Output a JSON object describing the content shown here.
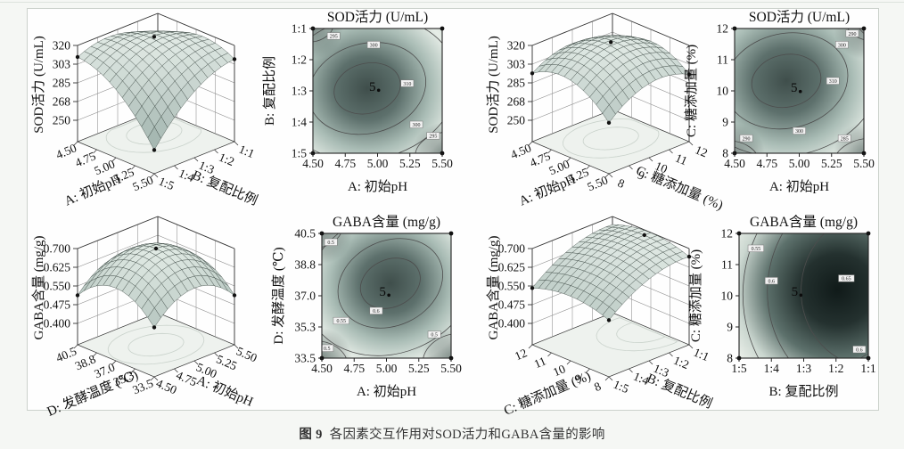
{
  "page": {
    "caption_label": "图 9",
    "caption_text": "各因素交互作用对SOD活力和GABA含量的影响"
  },
  "colors": {
    "page_bg": "#f5f7f4",
    "panel_bg": "#fefefe",
    "panel_border": "#cbd1cb",
    "axis_color": "#111111",
    "wall_grid": "#8a8a8a",
    "frame": "#333333",
    "floor_fill": "#eef2ee",
    "floor_ring": "#c9d2cb",
    "surface_low": "#8ba19b",
    "surface_high": "#e0e9e4",
    "surface_stroke": "#37443f",
    "ring_stroke": "#4d4d4d",
    "contour_palette": [
      "#3f4e4b",
      "#5d706c",
      "#a9bcb5",
      "#e6ede7",
      "#cfdad2"
    ],
    "contour_palette_dark": [
      "#101a19",
      "#24312f",
      "#5d716c",
      "#cbd7d0",
      "#eef2ec"
    ],
    "label_box_fill": "#f2f2f2",
    "label_box_stroke": "#777777"
  },
  "chart_data": [
    {
      "id": "sod-3d-ph-ratio",
      "type": "surface3d",
      "zlabel": "SOD活力 (U/mL)",
      "zlim": [
        250,
        320
      ],
      "zticks": [
        "320",
        "303",
        "285",
        "268",
        "250"
      ],
      "xlabel": "A: 初始pH",
      "xticks": [
        "4.50",
        "4.75",
        "5.00",
        "5.25",
        "5.50"
      ],
      "ylabel": "B: 复配比例",
      "yticks": [
        "1:5",
        "1:4",
        "1:3",
        "1:2",
        "1:1"
      ],
      "surface": {
        "u0": 0.35,
        "v0": 0.62,
        "ka": 0.75,
        "kb": 0.7,
        "kint": -0.95
      },
      "dots": [
        [
          0,
          0
        ],
        [
          1,
          0
        ],
        [
          1,
          1
        ],
        "peak"
      ]
    },
    {
      "id": "sod-contour-ph-ratio",
      "type": "contour",
      "title": "SOD活力 (U/mL)",
      "xlabel": "A: 初始pH",
      "xticks": [
        "4.50",
        "4.75",
        "5.00",
        "5.25",
        "5.50"
      ],
      "ylabel": "B: 复配比例",
      "yticks": [
        "1:1",
        "1:2",
        "1:3",
        "1:4",
        "1:5"
      ],
      "center": {
        "label": "5",
        "x": 46,
        "y": 47
      },
      "grad": {
        "cx": 42,
        "cy": 48,
        "r": 85,
        "dark2": false
      },
      "dark_corners": [
        "tl",
        "br"
      ],
      "rings": [
        {
          "cx": 42,
          "cy": 48,
          "rx": 26,
          "ry": 20,
          "rot": -15
        },
        {
          "cx": 42,
          "cy": 48,
          "rx": 46,
          "ry": 36,
          "rot": -15
        },
        {
          "cx": 42,
          "cy": 48,
          "rx": 70,
          "ry": 57,
          "rot": -12
        },
        {
          "cx": -4,
          "cy": -4,
          "rx": 20,
          "ry": 15,
          "rot": 0
        },
        {
          "cx": 105,
          "cy": 103,
          "rx": 26,
          "ry": 20,
          "rot": 0
        }
      ],
      "ring_labels": [
        {
          "text": "295",
          "x": 16,
          "y": 6
        },
        {
          "text": "300",
          "x": 47,
          "y": 13
        },
        {
          "text": "310",
          "x": 73,
          "y": 44
        },
        {
          "text": "300",
          "x": 80,
          "y": 77
        },
        {
          "text": "295",
          "x": 93,
          "y": 86
        }
      ]
    },
    {
      "id": "sod-3d-ph-sugar",
      "type": "surface3d",
      "zlabel": "SOD活力 (U/mL)",
      "zlim": [
        250,
        320
      ],
      "zticks": [
        "320",
        "303",
        "285",
        "268",
        "250"
      ],
      "xlabel": "A: 初始pH",
      "xticks": [
        "4.50",
        "4.75",
        "5.00",
        "5.25",
        "5.50"
      ],
      "ylabel": "C: 糖添加量 (%)",
      "yticks": [
        "8",
        "9",
        "10",
        "11",
        "12"
      ],
      "surface": {
        "u0": 0.45,
        "v0": 0.55,
        "ka": 0.95,
        "kb": 0.8,
        "kint": -0.25
      },
      "dots": [
        [
          0,
          0
        ],
        [
          1,
          0
        ],
        [
          1,
          1
        ],
        "peak"
      ]
    },
    {
      "id": "sod-contour-ph-sugar",
      "type": "contour",
      "title": "SOD活力 (U/mL)",
      "xlabel": "A: 初始pH",
      "xticks": [
        "4.50",
        "4.75",
        "5.00",
        "5.25",
        "5.50"
      ],
      "ylabel": "C: 糖添加量 (%)",
      "yticks": [
        "12",
        "11",
        "10",
        "9",
        "8"
      ],
      "center": {
        "label": "5",
        "x": 46,
        "y": 48
      },
      "grad": {
        "cx": 40,
        "cy": 42,
        "r": 88,
        "dark2": false
      },
      "dark_corners": [
        "tr",
        "bl",
        "br"
      ],
      "rings": [
        {
          "cx": 40,
          "cy": 42,
          "rx": 27,
          "ry": 21,
          "rot": -12
        },
        {
          "cx": 40,
          "cy": 42,
          "rx": 48,
          "ry": 38,
          "rot": -12
        },
        {
          "cx": 40,
          "cy": 42,
          "rx": 73,
          "ry": 60,
          "rot": -10
        },
        {
          "cx": -5,
          "cy": 108,
          "rx": 24,
          "ry": 18,
          "rot": 0
        },
        {
          "cx": 106,
          "cy": 110,
          "rx": 30,
          "ry": 22,
          "rot": 0
        },
        {
          "cx": 108,
          "cy": -6,
          "rx": 22,
          "ry": 16,
          "rot": 0
        }
      ],
      "ring_labels": [
        {
          "text": "290",
          "x": 91,
          "y": 4
        },
        {
          "text": "300",
          "x": 83,
          "y": 13
        },
        {
          "text": "310",
          "x": 76,
          "y": 42
        },
        {
          "text": "300",
          "x": 50,
          "y": 82
        },
        {
          "text": "290",
          "x": 9,
          "y": 88
        },
        {
          "text": "285",
          "x": 85,
          "y": 88
        }
      ]
    },
    {
      "id": "gaba-3d-temp-ph",
      "type": "surface3d",
      "zlabel": "GABA含量 (mg/g)",
      "zlim": [
        0.4,
        0.7
      ],
      "zticks": [
        "0.700",
        "0.625",
        "0.550",
        "0.475",
        "0.400"
      ],
      "xlabel": "D: 发酵温度 (℃)",
      "xticks": [
        "40.5",
        "38.8",
        "37.0",
        "35.3",
        "33.5"
      ],
      "ylabel": "A: 初始pH",
      "yticks": [
        "4.50",
        "4.75",
        "5.00",
        "5.25",
        "5.50"
      ],
      "surface": {
        "u0": 0.5,
        "v0": 0.5,
        "ka": 1.25,
        "kb": 1.25,
        "kint": 0
      },
      "dots": [
        [
          0,
          0
        ],
        [
          1,
          0
        ],
        [
          1,
          1
        ],
        "peak"
      ]
    },
    {
      "id": "gaba-contour-ph-temp",
      "type": "contour",
      "title": "GABA含量 (mg/g)",
      "xlabel": "A: 初始pH",
      "xticks": [
        "4.50",
        "4.75",
        "5.00",
        "5.25",
        "5.50"
      ],
      "ylabel": "D: 发酵温度 (℃)",
      "yticks": [
        "40.5",
        "38.8",
        "37.0",
        "35.3",
        "33.5"
      ],
      "center": {
        "label": "5",
        "x": 47,
        "y": 47
      },
      "grad": {
        "cx": 53,
        "cy": 40,
        "r": 80,
        "dark2": false
      },
      "dark_corners": [
        "tl",
        "bl",
        "br"
      ],
      "rings": [
        {
          "cx": 53,
          "cy": 40,
          "rx": 24,
          "ry": 19,
          "rot": -25
        },
        {
          "cx": 53,
          "cy": 40,
          "rx": 42,
          "ry": 34,
          "rot": -25
        },
        {
          "cx": 53,
          "cy": 40,
          "rx": 67,
          "ry": 56,
          "rot": -22
        },
        {
          "cx": -8,
          "cy": -6,
          "rx": 24,
          "ry": 18,
          "rot": 0
        },
        {
          "cx": -6,
          "cy": 106,
          "rx": 26,
          "ry": 20,
          "rot": 0
        },
        {
          "cx": 108,
          "cy": 104,
          "rx": 30,
          "ry": 24,
          "rot": 0
        }
      ],
      "ring_labels": [
        {
          "text": "0.5",
          "x": 7,
          "y": 7
        },
        {
          "text": "0.55",
          "x": 15,
          "y": 70
        },
        {
          "text": "0.6",
          "x": 42,
          "y": 62
        },
        {
          "text": "0.5",
          "x": 4,
          "y": 92
        },
        {
          "text": "0.5",
          "x": 87,
          "y": 81
        }
      ]
    },
    {
      "id": "gaba-3d-sugar-ratio",
      "type": "surface3d",
      "zlabel": "GABA含量 (mg/g)",
      "zlim": [
        0.4,
        0.7
      ],
      "zticks": [
        "0.700",
        "0.625",
        "0.550",
        "0.475",
        "0.400"
      ],
      "xlabel": "C: 糖添加量 (%)",
      "xticks": [
        "12",
        "11",
        "10",
        "9",
        "8"
      ],
      "ylabel": "B: 复配比例",
      "yticks": [
        "1:5",
        "1:4",
        "1:3",
        "1:2",
        "1:1"
      ],
      "surface": {
        "u0": 0.5,
        "v0": 0.92,
        "ka": 0.42,
        "kb": 0.5,
        "kint": 0
      },
      "dots": [
        [
          0,
          0
        ],
        [
          1,
          0
        ],
        [
          1,
          1
        ],
        "peak"
      ]
    },
    {
      "id": "gaba-contour-ratio-sugar",
      "type": "contour",
      "title": "GABA含量 (mg/g)",
      "xlabel": "B: 复配比例",
      "xticks": [
        "1:5",
        "1:4",
        "1:3",
        "1:2",
        "1:1"
      ],
      "ylabel": "C: 糖添加量 (%)",
      "yticks": [
        "12",
        "11",
        "10",
        "9",
        "8"
      ],
      "center": {
        "label": "5",
        "x": 43,
        "y": 47
      },
      "grad": {
        "cx": 76,
        "cy": 45,
        "r": 95,
        "dark2": true
      },
      "dark_corners": [],
      "rings": [
        {
          "cx": 98,
          "cy": 48,
          "rx": 95,
          "ry": 105,
          "rot": 4
        },
        {
          "cx": 100,
          "cy": 45,
          "rx": 78,
          "ry": 88,
          "rot": 6
        },
        {
          "cx": 103,
          "cy": 45,
          "rx": 55,
          "ry": 62,
          "rot": 6
        },
        {
          "cx": 105,
          "cy": 107,
          "rx": 14,
          "ry": 11,
          "rot": 0
        }
      ],
      "ring_labels": [
        {
          "text": "0.55",
          "x": 13,
          "y": 12
        },
        {
          "text": "0.6",
          "x": 25,
          "y": 38
        },
        {
          "text": "0.65",
          "x": 83,
          "y": 36
        },
        {
          "text": "0.6",
          "x": 93,
          "y": 93
        }
      ]
    }
  ]
}
